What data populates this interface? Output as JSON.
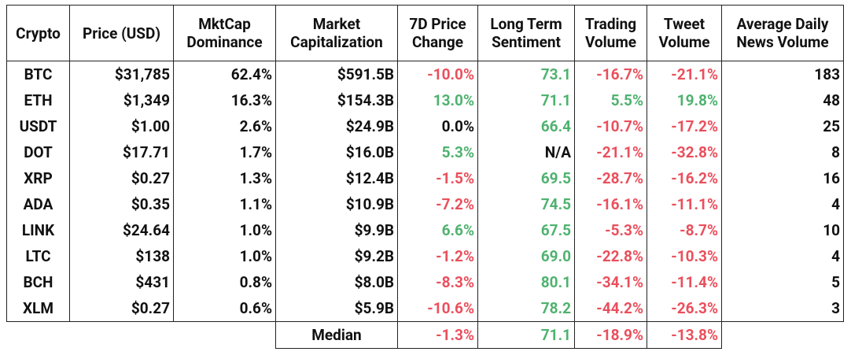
{
  "table": {
    "header": [
      "Crypto",
      "Price (USD)",
      "MktCap Dominance",
      "Market Capitalization",
      "7D Price Change",
      "Long Term Sentiment",
      "Trading Volume",
      "Tweet Volume",
      "Average Daily News Volume"
    ],
    "rows": [
      [
        "BTC",
        "$31,785",
        "62.4%",
        "$591.5B",
        "-10.0%",
        "73.1",
        "-16.7%",
        "-21.1%",
        "183"
      ],
      [
        "ETH",
        "$1,349",
        "16.3%",
        "$154.3B",
        "13.0%",
        "71.1",
        "5.5%",
        "19.8%",
        "48"
      ],
      [
        "USDT",
        "$1.00",
        "2.6%",
        "$24.9B",
        "0.0%",
        "66.4",
        "-10.7%",
        "-17.2%",
        "25"
      ],
      [
        "DOT",
        "$17.71",
        "1.7%",
        "$16.0B",
        "5.3%",
        "N/A",
        "-21.1%",
        "-32.8%",
        "8"
      ],
      [
        "XRP",
        "$0.27",
        "1.3%",
        "$12.4B",
        "-1.5%",
        "69.5",
        "-28.7%",
        "-16.2%",
        "16"
      ],
      [
        "ADA",
        "$0.35",
        "1.1%",
        "$10.9B",
        "-7.2%",
        "74.5",
        "-16.1%",
        "-11.1%",
        "4"
      ],
      [
        "LINK",
        "$24.64",
        "1.0%",
        "$9.9B",
        "6.6%",
        "67.5",
        "-5.3%",
        "-8.7%",
        "10"
      ],
      [
        "LTC",
        "$138",
        "1.0%",
        "$9.2B",
        "-1.2%",
        "69.0",
        "-22.8%",
        "-10.3%",
        "4"
      ],
      [
        "BCH",
        "$431",
        "0.8%",
        "$8.0B",
        "-8.3%",
        "80.1",
        "-34.1%",
        "-11.4%",
        "5"
      ],
      [
        "XLM",
        "$0.27",
        "0.6%",
        "$5.9B",
        "-10.6%",
        "78.2",
        "-44.2%",
        "-26.3%",
        "3"
      ]
    ],
    "median": {
      "label": "Median",
      "values": [
        "-1.3%",
        "71.1",
        "-18.9%",
        "-13.8%"
      ]
    },
    "colored_columns": [
      4,
      5,
      6,
      7
    ],
    "negative_color": "#ea4f5c",
    "positive_color": "#4fb26f"
  }
}
